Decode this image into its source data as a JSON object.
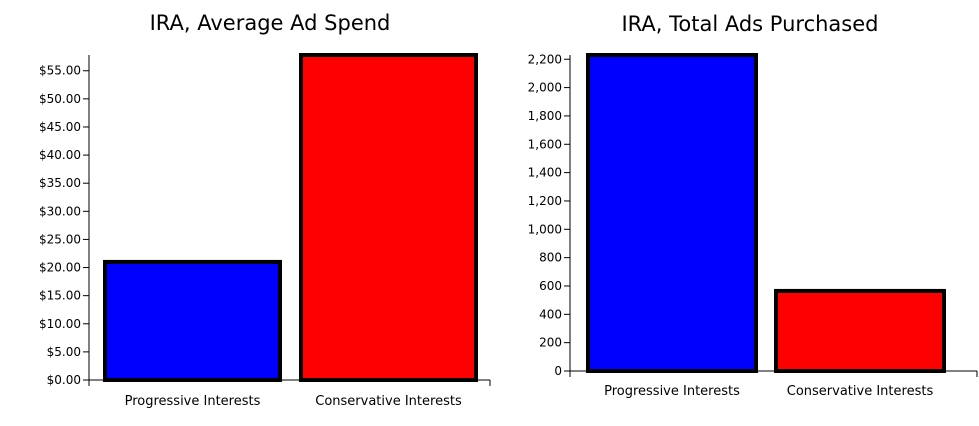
{
  "chart_data": [
    {
      "type": "bar",
      "title": "IRA, Average Ad Spend",
      "categories": [
        "Progressive Interests",
        "Conservative Interests"
      ],
      "values": [
        21.0,
        57.8
      ],
      "colors": [
        "#0000ff",
        "#ff0000"
      ],
      "ylim": [
        0,
        57.8
      ],
      "yticks": [
        0,
        5,
        10,
        15,
        20,
        25,
        30,
        35,
        40,
        45,
        50,
        55
      ],
      "ytick_labels": [
        "$0.00",
        "$5.00",
        "$10.00",
        "$15.00",
        "$20.00",
        "$25.00",
        "$30.00",
        "$35.00",
        "$40.00",
        "$45.00",
        "$50.00",
        "$55.00"
      ],
      "xlabel": "",
      "ylabel": "",
      "grid": false,
      "legend": false
    },
    {
      "type": "bar",
      "title": "IRA, Total Ads Purchased",
      "categories": [
        "Progressive Interests",
        "Conservative Interests"
      ],
      "values": [
        2230,
        565
      ],
      "colors": [
        "#0000ff",
        "#ff0000"
      ],
      "ylim": [
        0,
        2230
      ],
      "yticks": [
        0,
        200,
        400,
        600,
        800,
        1000,
        1200,
        1400,
        1600,
        1800,
        2000,
        2200
      ],
      "ytick_labels": [
        "0",
        "200",
        "400",
        "600",
        "800",
        "1,000",
        "1,200",
        "1,400",
        "1,600",
        "1,800",
        "2,000",
        "2,200"
      ],
      "xlabel": "",
      "ylabel": "",
      "grid": false,
      "legend": false
    }
  ]
}
